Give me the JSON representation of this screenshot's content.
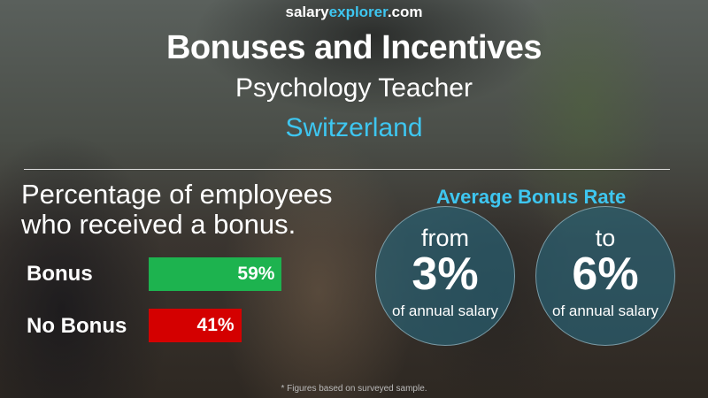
{
  "site": {
    "name_part1": "salary",
    "name_part2": "explorer",
    "name_part3": ".com"
  },
  "header": {
    "title": "Bonuses and Incentives",
    "job": "Psychology Teacher",
    "country": "Switzerland"
  },
  "bonus_section": {
    "heading_line1": "Percentage of employees",
    "heading_line2": "who received a bonus.",
    "items": [
      {
        "label": "Bonus",
        "value": "59%",
        "percent": 59,
        "color": "#1db34f"
      },
      {
        "label": "No Bonus",
        "value": "41%",
        "percent": 41,
        "color": "#d40000"
      }
    ]
  },
  "rate_section": {
    "heading": "Average Bonus Rate",
    "from": {
      "word": "from",
      "value": "3%",
      "caption": "of annual salary"
    },
    "to": {
      "word": "to",
      "value": "6%",
      "caption": "of annual salary"
    }
  },
  "footnote": "* Figures based on surveyed sample."
}
